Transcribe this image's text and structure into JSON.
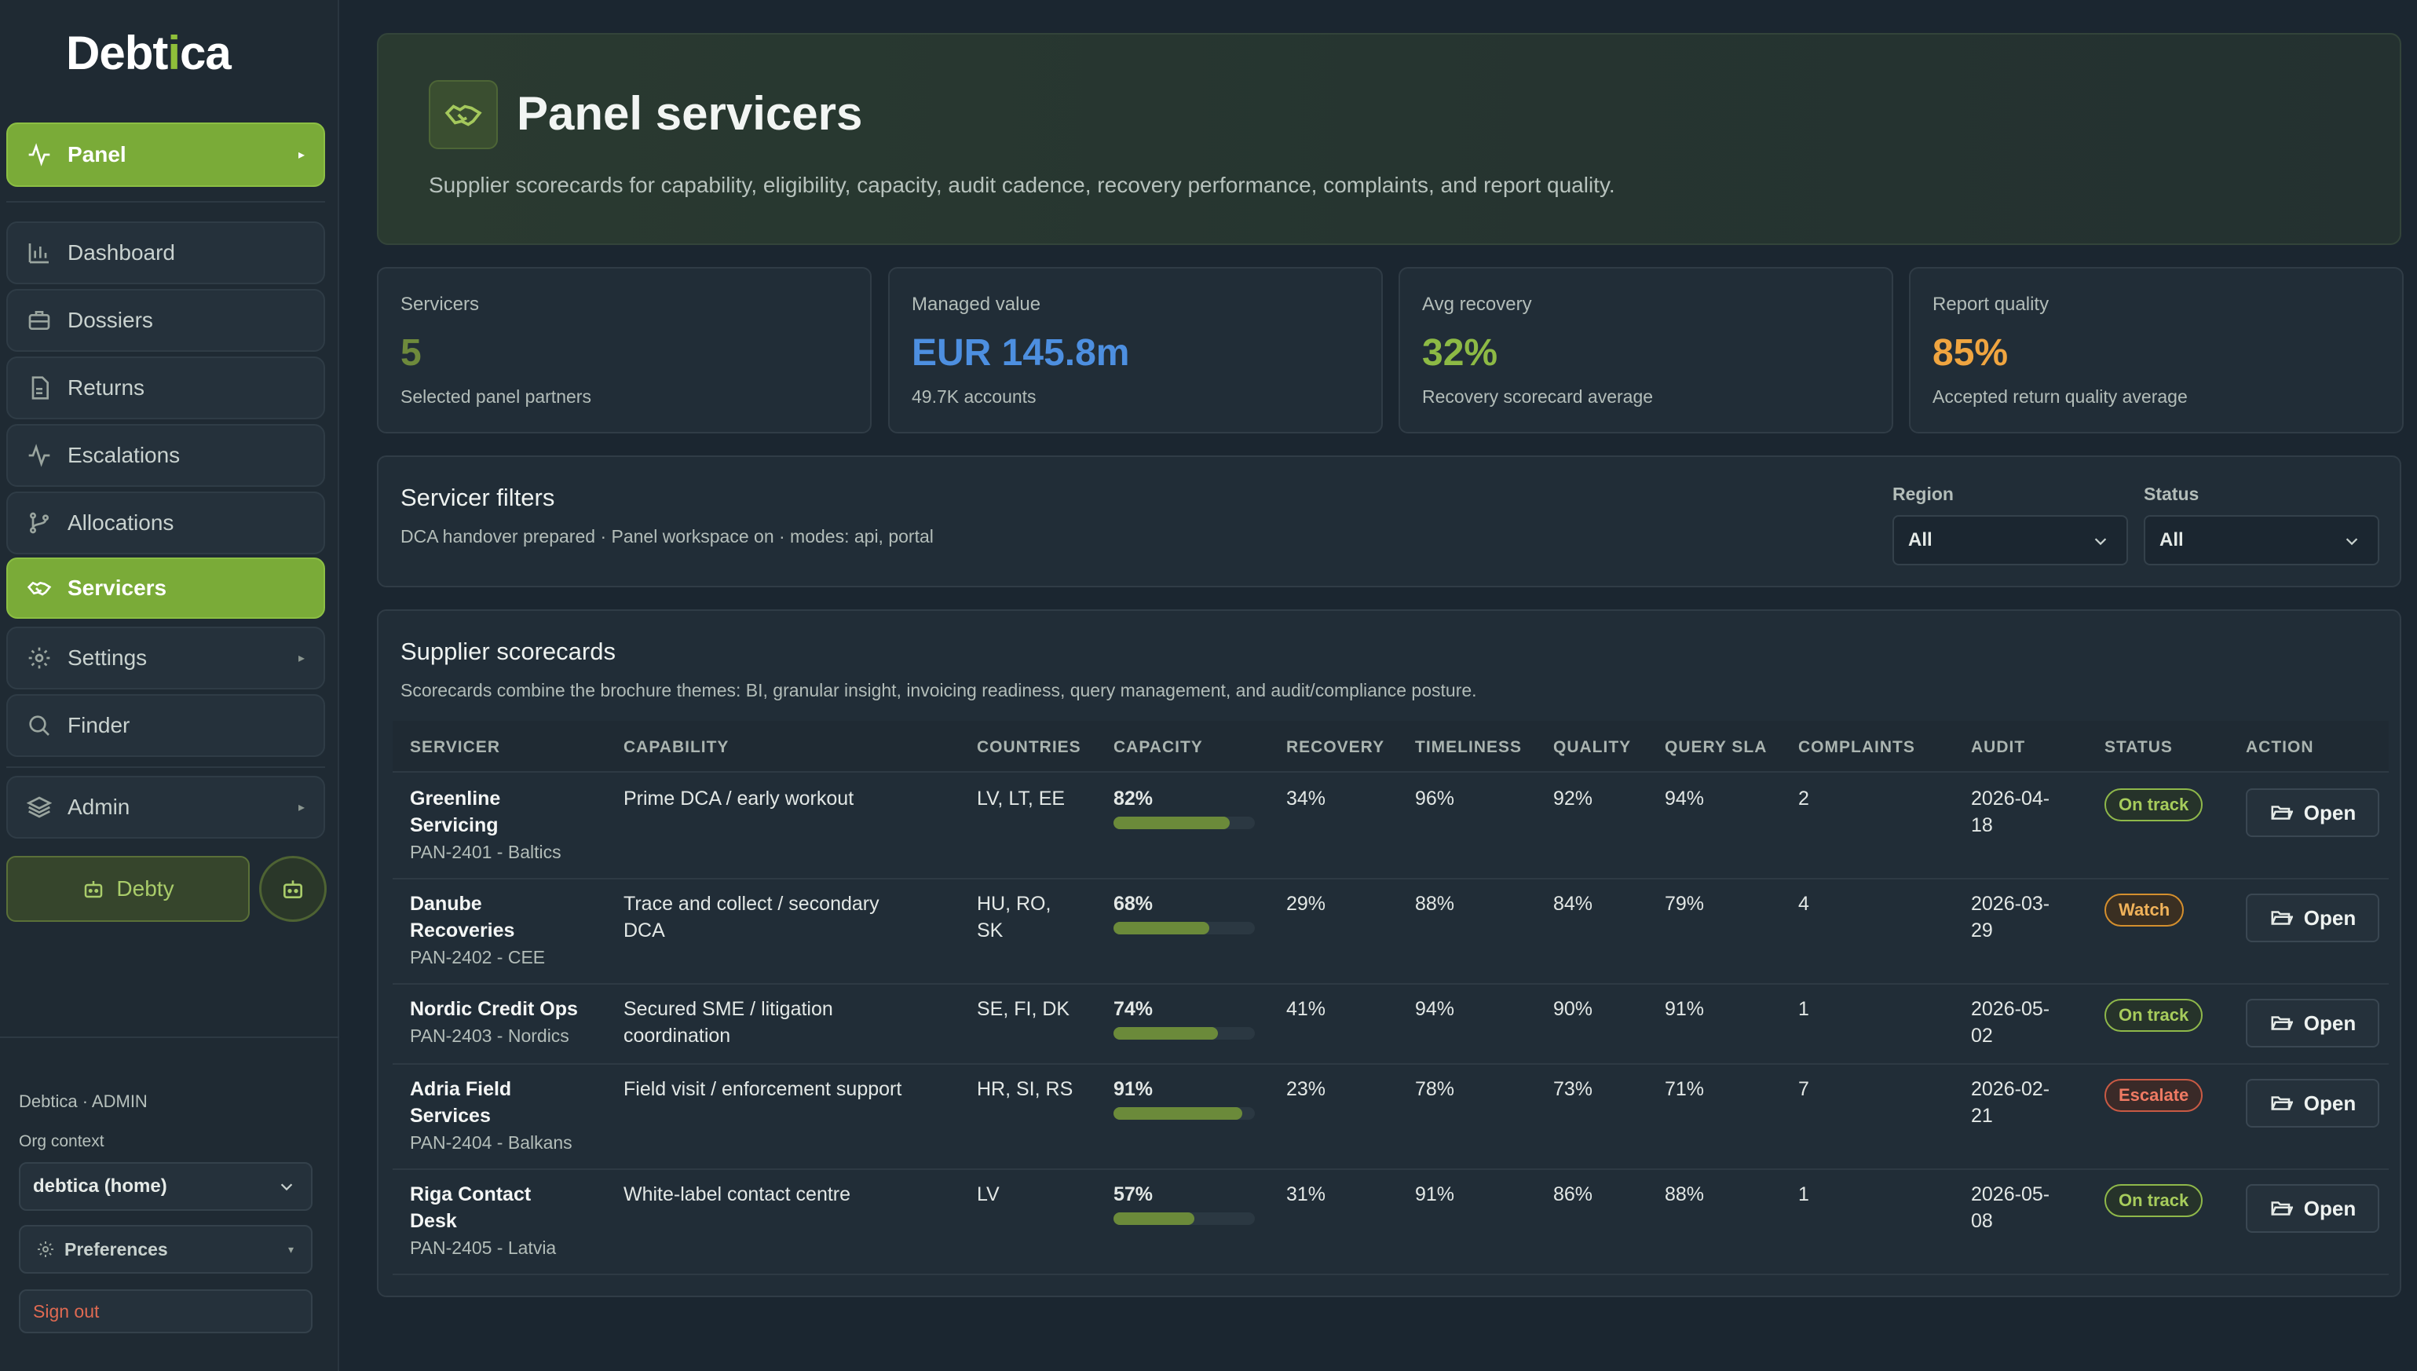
{
  "brand": {
    "name_a": "Debt",
    "name_b": "i",
    "name_c": "ca"
  },
  "sidebar": {
    "panel_label": "Panel",
    "items": [
      {
        "label": "Dashboard",
        "icon": "bar-chart-icon"
      },
      {
        "label": "Dossiers",
        "icon": "briefcase-icon"
      },
      {
        "label": "Returns",
        "icon": "document-icon"
      },
      {
        "label": "Escalations",
        "icon": "pulse-icon"
      },
      {
        "label": "Allocations",
        "icon": "branch-icon"
      },
      {
        "label": "Servicers",
        "icon": "handshake-icon"
      },
      {
        "label": "Settings",
        "icon": "gear-icon"
      },
      {
        "label": "Finder",
        "icon": "search-icon"
      },
      {
        "label": "Admin",
        "icon": "layers-icon"
      }
    ],
    "debty_label": "Debty",
    "footer": {
      "org_line": "Debtica · ADMIN",
      "org_context_label": "Org context",
      "org_context_value": "debtica (home)",
      "preferences_label": "Preferences",
      "signout_label": "Sign out"
    }
  },
  "hero": {
    "title": "Panel servicers",
    "subtitle": "Supplier scorecards for capability, eligibility, capacity, audit cadence, recovery performance, complaints, and report quality."
  },
  "kpis": [
    {
      "label": "Servicers",
      "value": "5",
      "sub": "Selected panel partners",
      "color": "#6e8a3c"
    },
    {
      "label": "Managed value",
      "value": "EUR 145.8m",
      "sub": "49.7K accounts",
      "color": "#4d8fe0"
    },
    {
      "label": "Avg recovery",
      "value": "32%",
      "sub": "Recovery scorecard average",
      "color": "#8dba45"
    },
    {
      "label": "Report quality",
      "value": "85%",
      "sub": "Accepted return quality average",
      "color": "#f0a540"
    }
  ],
  "filters": {
    "title": "Servicer filters",
    "subtitle": "DCA handover prepared · Panel workspace on · modes: api, portal",
    "region_label": "Region",
    "region_value": "All",
    "status_label": "Status",
    "status_value": "All"
  },
  "scorecards": {
    "title": "Supplier scorecards",
    "subtitle": "Scorecards combine the brochure themes: BI, granular insight, invoicing readiness, query management, and audit/compliance posture.",
    "columns": [
      "SERVICER",
      "CAPABILITY",
      "COUNTRIES",
      "CAPACITY",
      "RECOVERY",
      "TIMELINESS",
      "QUALITY",
      "QUERY SLA",
      "COMPLAINTS",
      "AUDIT",
      "STATUS",
      "ACTION"
    ],
    "open_label": "Open",
    "rows": [
      {
        "name1": "Greenline",
        "name2": "Servicing",
        "code": "PAN-2401 - Baltics",
        "cap1": "Prime DCA / early workout",
        "cap2": "",
        "c1": "LV, LT, EE",
        "c2": "",
        "capacity": "82%",
        "capacity_frac": 0.82,
        "recovery": "34%",
        "timeliness": "96%",
        "quality": "92%",
        "sla": "94%",
        "complaints": "2",
        "audit1": "2026-04-",
        "audit2": "18",
        "status": "On track",
        "status_kind": "ok"
      },
      {
        "name1": "Danube",
        "name2": "Recoveries",
        "code": "PAN-2402 - CEE",
        "cap1": "Trace and collect / secondary",
        "cap2": "DCA",
        "c1": "HU, RO,",
        "c2": "SK",
        "capacity": "68%",
        "capacity_frac": 0.68,
        "recovery": "29%",
        "timeliness": "88%",
        "quality": "84%",
        "sla": "79%",
        "complaints": "4",
        "audit1": "2026-03-",
        "audit2": "29",
        "status": "Watch",
        "status_kind": "watch"
      },
      {
        "name1": "Nordic Credit Ops",
        "name2": "",
        "code": "PAN-2403 - Nordics",
        "cap1": "Secured SME / litigation",
        "cap2": "coordination",
        "c1": "SE, FI, DK",
        "c2": "",
        "capacity": "74%",
        "capacity_frac": 0.74,
        "recovery": "41%",
        "timeliness": "94%",
        "quality": "90%",
        "sla": "91%",
        "complaints": "1",
        "audit1": "2026-05-",
        "audit2": "02",
        "status": "On track",
        "status_kind": "ok"
      },
      {
        "name1": "Adria Field",
        "name2": "Services",
        "code": "PAN-2404 - Balkans",
        "cap1": "Field visit / enforcement support",
        "cap2": "",
        "c1": "HR, SI, RS",
        "c2": "",
        "capacity": "91%",
        "capacity_frac": 0.91,
        "recovery": "23%",
        "timeliness": "78%",
        "quality": "73%",
        "sla": "71%",
        "complaints": "7",
        "audit1": "2026-02-",
        "audit2": "21",
        "status": "Escalate",
        "status_kind": "esc"
      },
      {
        "name1": "Riga Contact",
        "name2": "Desk",
        "code": "PAN-2405 - Latvia",
        "cap1": "White-label contact centre",
        "cap2": "",
        "c1": "LV",
        "c2": "",
        "capacity": "57%",
        "capacity_frac": 0.57,
        "recovery": "31%",
        "timeliness": "91%",
        "quality": "86%",
        "sla": "88%",
        "complaints": "1",
        "audit1": "2026-05-",
        "audit2": "08",
        "status": "On track",
        "status_kind": "ok"
      }
    ]
  }
}
